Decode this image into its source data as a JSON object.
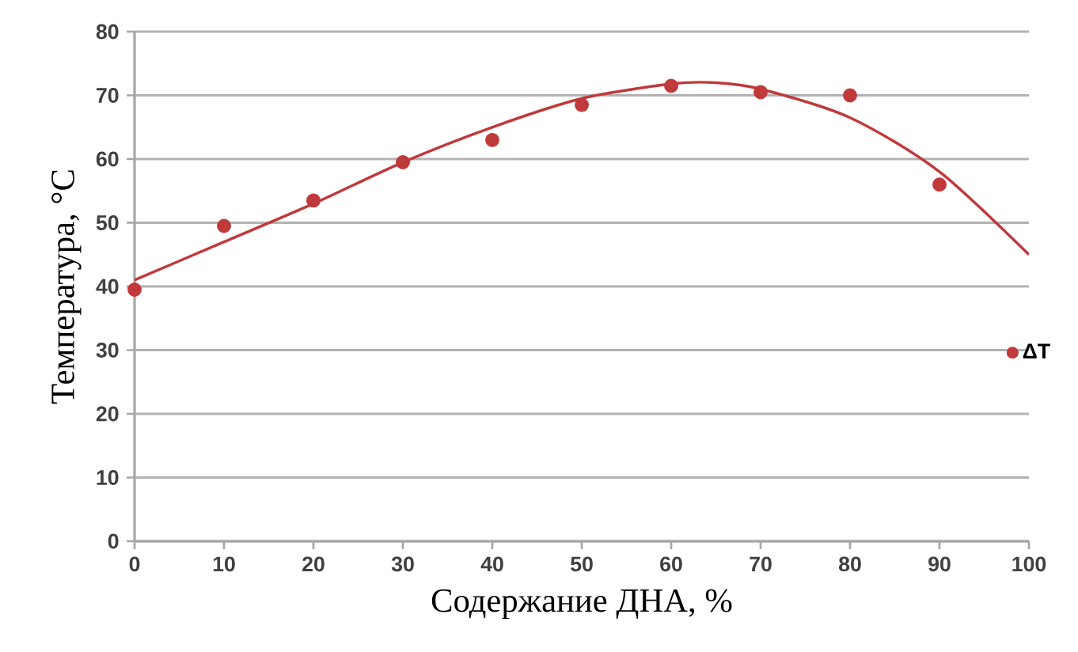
{
  "chart_data": {
    "type": "scatter",
    "xlabel": "Содержание ДНА, %",
    "ylabel": "Температура,  °C",
    "series": [
      {
        "name": "ΔT",
        "color": "#c0393b",
        "marker": "circle",
        "x": [
          0,
          10,
          20,
          30,
          40,
          50,
          60,
          70,
          80,
          90
        ],
        "values": [
          39.5,
          49.5,
          53.5,
          59.5,
          63,
          68.5,
          71.5,
          70.5,
          70,
          56
        ]
      },
      {
        "type": "line",
        "color": "#c0393b",
        "marker": "none",
        "line_style": "solid",
        "x": [
          0,
          10,
          20,
          30,
          40,
          50,
          60,
          65,
          70,
          80,
          90,
          100
        ],
        "values": [
          41,
          47,
          53,
          59.5,
          65,
          69.5,
          71.8,
          72,
          71,
          66.5,
          58,
          45
        ]
      }
    ],
    "xlim": [
      0,
      100
    ],
    "xticks": [
      0,
      10,
      20,
      30,
      40,
      50,
      60,
      70,
      80,
      90,
      100
    ],
    "ylim": [
      0,
      80
    ],
    "yticks": [
      0,
      10,
      20,
      30,
      40,
      50,
      60,
      70,
      80
    ],
    "grid": "y",
    "legend": "right"
  }
}
